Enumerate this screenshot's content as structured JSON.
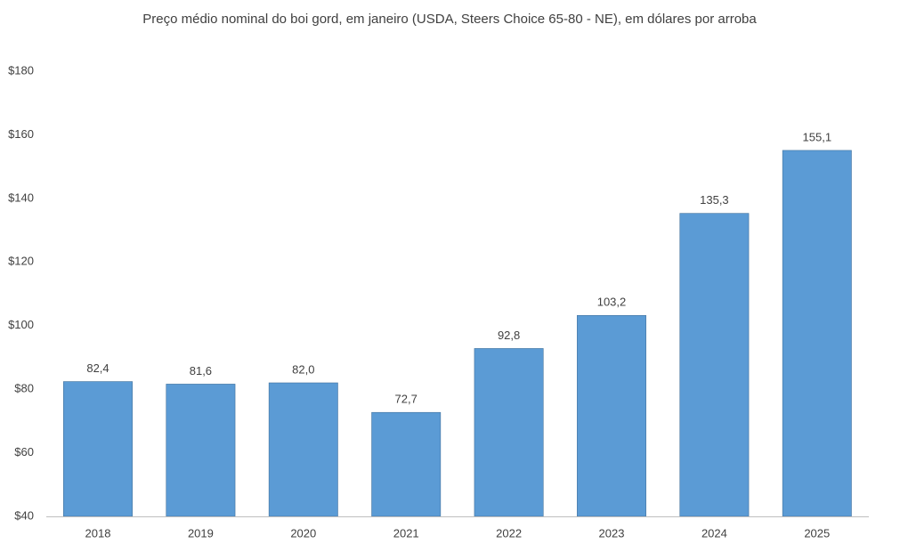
{
  "chart_data": {
    "type": "bar",
    "title": "Preço médio nominal do boi gord, em janeiro (USDA, Steers Choice 65-80 - NE), em dólares por arroba",
    "categories": [
      "2018",
      "2019",
      "2020",
      "2021",
      "2022",
      "2023",
      "2024",
      "2025"
    ],
    "values": [
      82.4,
      81.6,
      82.0,
      72.7,
      92.8,
      103.2,
      135.3,
      155.1
    ],
    "value_labels": [
      "82,4",
      "81,6",
      "82,0",
      "72,7",
      "92,8",
      "103,2",
      "135,3",
      "155,1"
    ],
    "color": "#5b9bd5",
    "ylim": [
      40,
      180
    ],
    "yticks": [
      {
        "value": 40,
        "label": "$40"
      },
      {
        "value": 60,
        "label": "$60"
      },
      {
        "value": 80,
        "label": "$80"
      },
      {
        "value": 100,
        "label": "$100"
      },
      {
        "value": 120,
        "label": "$120"
      },
      {
        "value": 140,
        "label": "$140"
      },
      {
        "value": 160,
        "label": "$160"
      },
      {
        "value": 180,
        "label": "$180"
      }
    ],
    "grid": false
  }
}
